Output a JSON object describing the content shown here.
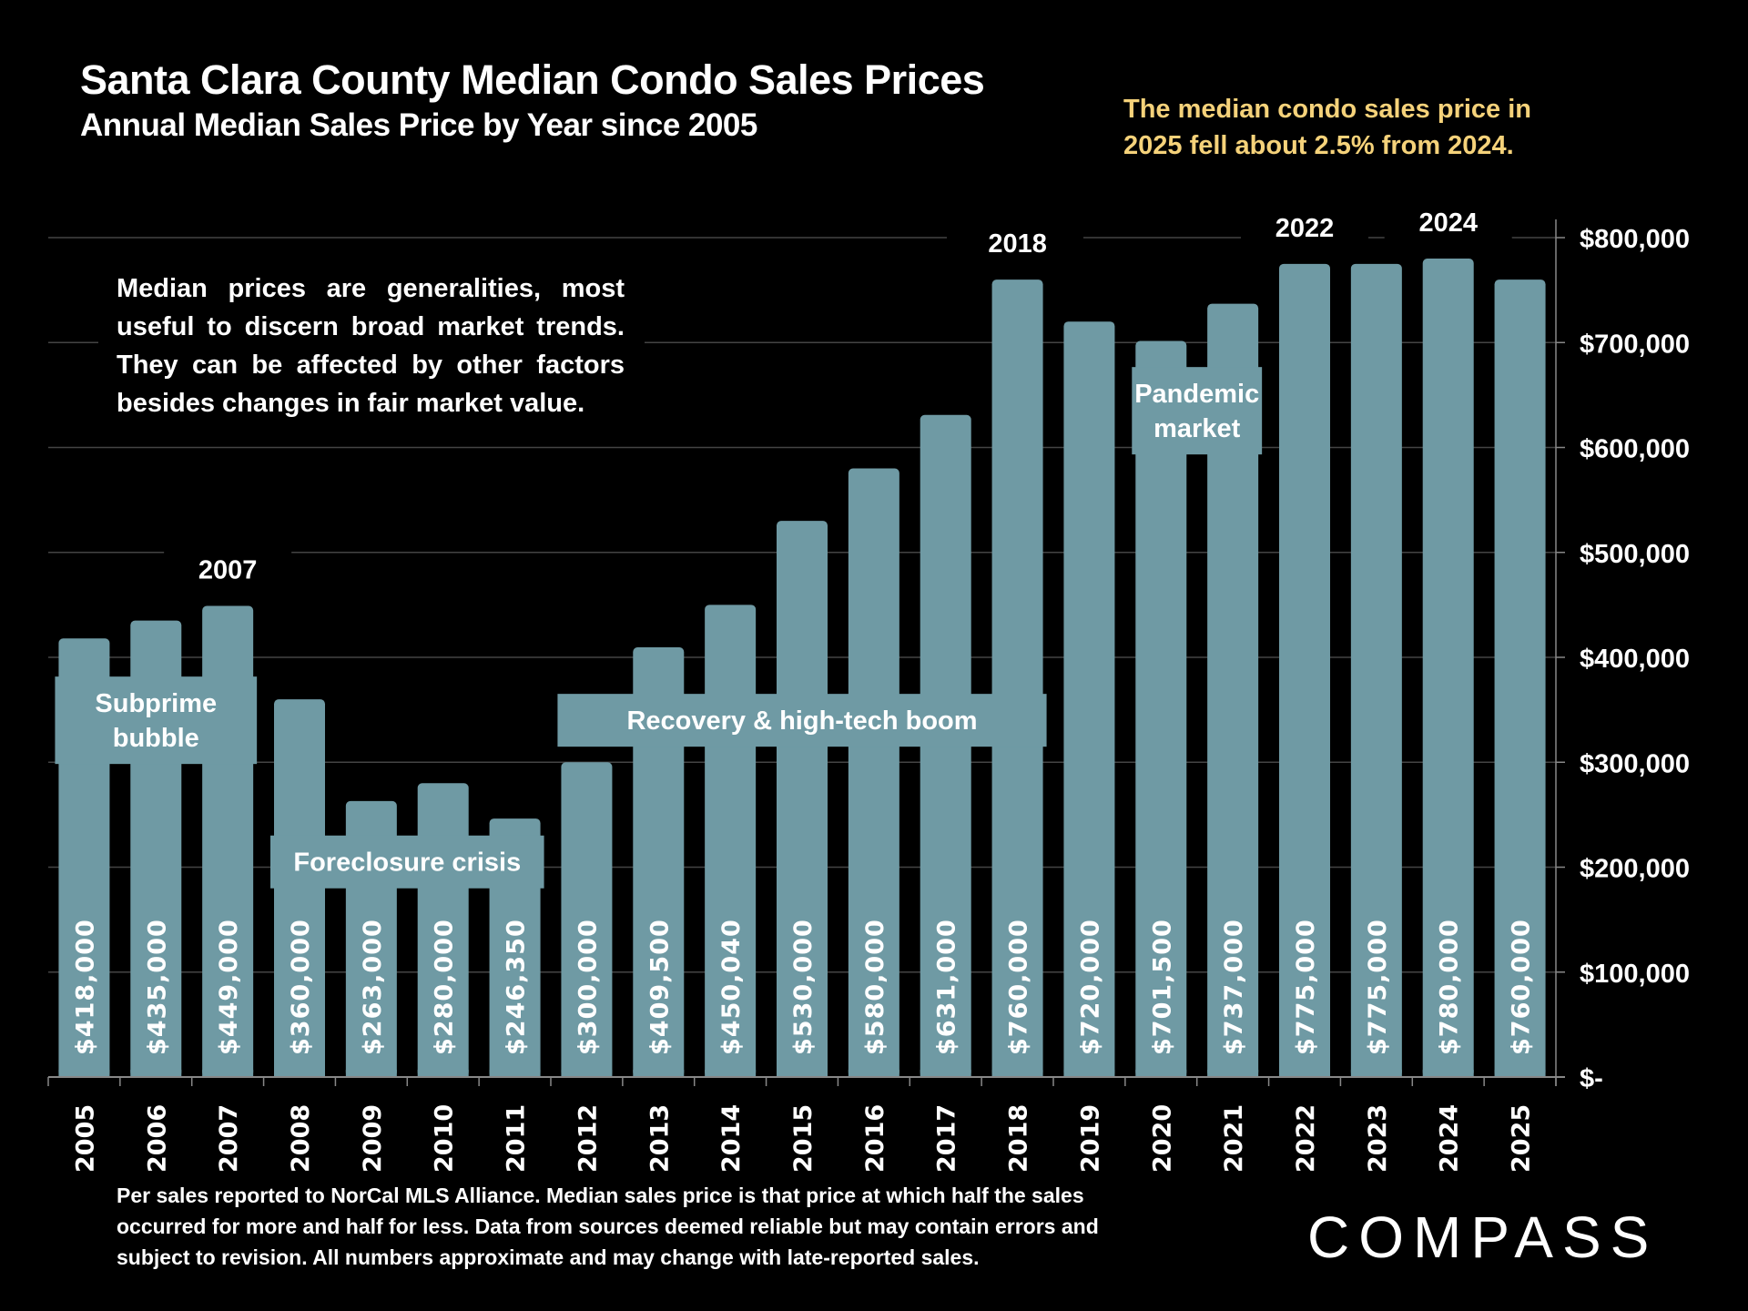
{
  "header": {
    "title": "Santa Clara County Median Condo Sales Prices",
    "subtitle": "Annual Median Sales Price by Year since 2005",
    "callout": "The median condo sales price in 2025 fell about 2.5% from 2024."
  },
  "note": "Median prices are generalities, most useful to discern broad market trends. They can be affected by other factors besides changes in fair market value.",
  "footer": "Per sales reported to NorCal MLS Alliance. Median sales price is that price at which half the sales occurred for more and half for less. Data from sources deemed reliable but may contain errors and subject to revision. All numbers approximate and may change with late-reported sales.",
  "logo": "COMPASS",
  "colors": {
    "bar": "#6f9aa4",
    "background": "#000000",
    "callout": "#f5d27a",
    "grid": "#3a3a3a"
  },
  "chart_data": {
    "type": "bar",
    "title": "Santa Clara County Median Condo Sales Prices",
    "subtitle": "Annual Median Sales Price by Year since 2005",
    "xlabel": "",
    "ylabel": "",
    "categories": [
      "2005",
      "2006",
      "2007",
      "2008",
      "2009",
      "2010",
      "2011",
      "2012",
      "2013",
      "2014",
      "2015",
      "2016",
      "2017",
      "2018",
      "2019",
      "2020",
      "2021",
      "2022",
      "2023",
      "2024",
      "2025"
    ],
    "values": [
      418000,
      435000,
      449000,
      360000,
      263000,
      280000,
      246350,
      300000,
      409500,
      450040,
      530000,
      580000,
      631000,
      760000,
      720000,
      701500,
      737000,
      775000,
      775000,
      780000,
      760000
    ],
    "data_labels": [
      "$418,000",
      "$435,000",
      "$449,000",
      "$360,000",
      "$263,000",
      "$280,000",
      "$246,350",
      "$300,000",
      "$409,500",
      "$450,040",
      "$530,000",
      "$580,000",
      "$631,000",
      "$760,000",
      "$720,000",
      "$701,500",
      "$737,000",
      "$775,000",
      "$775,000",
      "$780,000",
      "$760,000"
    ],
    "ylim": [
      0,
      800000
    ],
    "y_ticks": [
      0,
      100000,
      200000,
      300000,
      400000,
      500000,
      600000,
      700000,
      800000
    ],
    "y_tick_labels": [
      "$-",
      "$100,000",
      "$200,000",
      "$300,000",
      "$400,000",
      "$500,000",
      "$600,000",
      "$700,000",
      "$800,000"
    ],
    "y_axis_side": "right",
    "grid": true,
    "legend": "none",
    "year_highlights": [
      "2007",
      "2018",
      "2022",
      "2024"
    ],
    "annotations": [
      {
        "text": [
          "Subprime",
          "bubble"
        ],
        "years": [
          "2005",
          "2007"
        ],
        "level": 340000
      },
      {
        "text": [
          "Foreclosure crisis"
        ],
        "years": [
          "2008",
          "2011"
        ],
        "level": 205000
      },
      {
        "text": [
          "Recovery & high-tech boom"
        ],
        "years": [
          "2012",
          "2018"
        ],
        "level": 340000
      },
      {
        "text": [
          "Pandemic",
          "market"
        ],
        "years": [
          "2020",
          "2021"
        ],
        "level": 635000
      }
    ]
  }
}
